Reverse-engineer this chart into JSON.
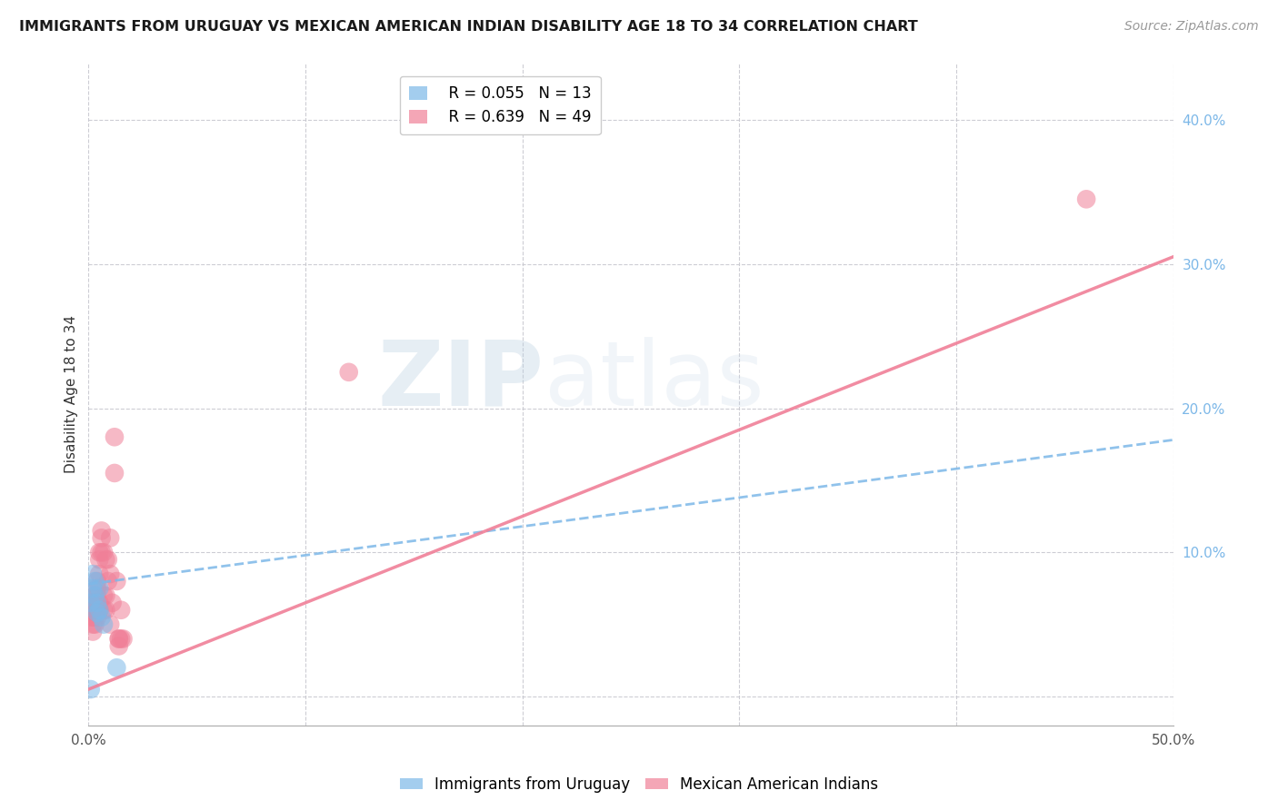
{
  "title": "IMMIGRANTS FROM URUGUAY VS MEXICAN AMERICAN INDIAN DISABILITY AGE 18 TO 34 CORRELATION CHART",
  "source": "Source: ZipAtlas.com",
  "ylabel": "Disability Age 18 to 34",
  "xlim": [
    0.0,
    0.5
  ],
  "ylim": [
    -0.02,
    0.44
  ],
  "xticks": [
    0.0,
    0.1,
    0.2,
    0.3,
    0.4,
    0.5
  ],
  "yticks": [
    0.0,
    0.1,
    0.2,
    0.3,
    0.4
  ],
  "ytick_labels": [
    "",
    "10.0%",
    "20.0%",
    "30.0%",
    "40.0%"
  ],
  "xtick_labels": [
    "0.0%",
    "",
    "",
    "",
    "",
    "50.0%"
  ],
  "grid_color": "#c8c8d0",
  "background_color": "#ffffff",
  "watermark_zip": "ZIP",
  "watermark_atlas": "atlas",
  "legend_r1": "R = 0.055",
  "legend_n1": "N = 13",
  "legend_r2": "R = 0.639",
  "legend_n2": "N = 49",
  "blue_color": "#7db8e8",
  "pink_color": "#f08098",
  "blue_scatter": [
    [
      0.001,
      0.065
    ],
    [
      0.002,
      0.075
    ],
    [
      0.002,
      0.085
    ],
    [
      0.003,
      0.08
    ],
    [
      0.003,
      0.07
    ],
    [
      0.004,
      0.065
    ],
    [
      0.004,
      0.058
    ],
    [
      0.005,
      0.075
    ],
    [
      0.005,
      0.06
    ],
    [
      0.006,
      0.055
    ],
    [
      0.007,
      0.05
    ],
    [
      0.013,
      0.02
    ],
    [
      0.001,
      0.005
    ]
  ],
  "pink_scatter": [
    [
      0.001,
      0.06
    ],
    [
      0.001,
      0.055
    ],
    [
      0.001,
      0.065
    ],
    [
      0.002,
      0.055
    ],
    [
      0.002,
      0.058
    ],
    [
      0.002,
      0.065
    ],
    [
      0.002,
      0.045
    ],
    [
      0.002,
      0.05
    ],
    [
      0.003,
      0.06
    ],
    [
      0.003,
      0.055
    ],
    [
      0.003,
      0.065
    ],
    [
      0.003,
      0.07
    ],
    [
      0.003,
      0.05
    ],
    [
      0.004,
      0.06
    ],
    [
      0.004,
      0.055
    ],
    [
      0.004,
      0.08
    ],
    [
      0.004,
      0.075
    ],
    [
      0.004,
      0.07
    ],
    [
      0.005,
      0.1
    ],
    [
      0.005,
      0.095
    ],
    [
      0.005,
      0.085
    ],
    [
      0.005,
      0.065
    ],
    [
      0.005,
      0.06
    ],
    [
      0.006,
      0.11
    ],
    [
      0.006,
      0.1
    ],
    [
      0.006,
      0.115
    ],
    [
      0.007,
      0.1
    ],
    [
      0.007,
      0.06
    ],
    [
      0.007,
      0.07
    ],
    [
      0.008,
      0.07
    ],
    [
      0.008,
      0.06
    ],
    [
      0.008,
      0.095
    ],
    [
      0.009,
      0.095
    ],
    [
      0.009,
      0.08
    ],
    [
      0.01,
      0.11
    ],
    [
      0.01,
      0.05
    ],
    [
      0.01,
      0.085
    ],
    [
      0.011,
      0.065
    ],
    [
      0.013,
      0.08
    ],
    [
      0.015,
      0.06
    ],
    [
      0.015,
      0.04
    ],
    [
      0.016,
      0.04
    ],
    [
      0.012,
      0.18
    ],
    [
      0.012,
      0.155
    ],
    [
      0.014,
      0.04
    ],
    [
      0.014,
      0.035
    ],
    [
      0.014,
      0.04
    ],
    [
      0.46,
      0.345
    ],
    [
      0.12,
      0.225
    ]
  ],
  "blue_line_x": [
    0.0,
    0.5
  ],
  "blue_line_y": [
    0.078,
    0.178
  ],
  "pink_line_x": [
    0.0,
    0.5
  ],
  "pink_line_y": [
    0.005,
    0.305
  ]
}
